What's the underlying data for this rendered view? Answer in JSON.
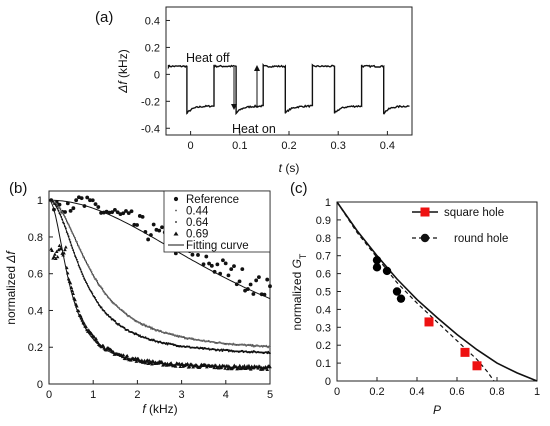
{
  "panels": {
    "a": {
      "label": "(a)"
    },
    "b": {
      "label": "(b)"
    },
    "c": {
      "label": "(c)"
    }
  },
  "chart_data": [
    {
      "id": "a",
      "type": "line",
      "title": "",
      "xlabel_italic": "t",
      "xlabel_rest": " (s)",
      "ylabel_italic": "Δf",
      "ylabel_rest": " (kHz)",
      "xlim": [
        -0.05,
        0.45
      ],
      "ylim": [
        -0.45,
        0.5
      ],
      "xticks": [
        0,
        0.1,
        0.2,
        0.3,
        0.4
      ],
      "xtick_labels": [
        "0",
        "0.1",
        "0.2",
        "0.3",
        "0.4"
      ],
      "yticks": [
        -0.4,
        -0.2,
        0,
        0.2,
        0.4
      ],
      "ytick_labels": [
        "-0.4",
        "-0.2",
        "0",
        "0.2",
        "0.4"
      ],
      "signal": {
        "high_level": 0.06,
        "low_level_start": -0.29,
        "low_level_end": -0.235,
        "edges_down": [
          -0.0075,
          0.0925,
          0.1925,
          0.2925,
          0.3925
        ],
        "edges_up": [
          -0.045,
          0.0475,
          0.1475,
          0.2475,
          0.3475
        ],
        "x_start": -0.045,
        "x_end": 0.445
      },
      "annotations": [
        {
          "text": "Heat off",
          "x": 0.0,
          "y": 0.17
        },
        {
          "text": "Heat on",
          "x": 0.09,
          "y": -0.38
        }
      ]
    },
    {
      "id": "b",
      "type": "scatter",
      "title": "",
      "xlabel_italic": "f",
      "xlabel_rest": " (kHz)",
      "ylabel_plain": "normalized ",
      "ylabel_italic": "Δf",
      "xlim": [
        0,
        5
      ],
      "ylim": [
        0,
        1.05
      ],
      "xticks": [
        0,
        1,
        2,
        3,
        4,
        5
      ],
      "xtick_labels": [
        "0",
        "1",
        "2",
        "3",
        "4",
        "5"
      ],
      "yticks": [
        0,
        0.2,
        0.4,
        0.6,
        0.8,
        1
      ],
      "ytick_labels": [
        "0",
        "0.2",
        "0.4",
        "0.6",
        "0.8",
        "1"
      ],
      "series": [
        {
          "name": "Reference",
          "marker": "dot",
          "a": 0.0,
          "k": 0.11,
          "noise": 0.06
        },
        {
          "name": "0.44",
          "marker": "small-dot",
          "a": 0.17,
          "k": 0.55,
          "noise": 0.005
        },
        {
          "name": "0.64",
          "marker": "small-dot",
          "a": 0.15,
          "k": 0.7,
          "noise": 0.005
        },
        {
          "name": "0.69",
          "marker": "triangle",
          "a": 0.08,
          "k": 1.15,
          "noise": 0.01
        }
      ],
      "fits": [
        {
          "a": 0.0,
          "k": 0.12
        },
        {
          "a": 0.17,
          "k": 0.55
        },
        {
          "a": 0.15,
          "k": 0.7
        },
        {
          "a": 0.08,
          "k": 1.2
        }
      ],
      "fit_legend": "Fitting curve"
    },
    {
      "id": "c",
      "type": "scatter",
      "title": "",
      "xlabel_italic": "P",
      "ylabel_plain": "normalized ",
      "ylabel_italic": "G",
      "ylabel_sub": "T",
      "xlim": [
        0,
        1
      ],
      "ylim": [
        0,
        1
      ],
      "xticks": [
        0,
        0.2,
        0.4,
        0.6,
        0.8,
        1
      ],
      "xtick_labels": [
        "0",
        "0.2",
        "0.4",
        "0.6",
        "0.8",
        "1"
      ],
      "yticks": [
        0,
        0.1,
        0.2,
        0.3,
        0.4,
        0.5,
        0.6,
        0.7,
        0.8,
        0.9,
        1
      ],
      "ytick_labels": [
        "0",
        "0.1",
        "0.2",
        "0.3",
        "0.4",
        "0.5",
        "0.6",
        "0.7",
        "0.8",
        "0.9",
        "1"
      ],
      "series": [
        {
          "name": "square hole",
          "color": "#ee1111",
          "marker": "square",
          "x": [
            0.46,
            0.64,
            0.7
          ],
          "y": [
            0.33,
            0.16,
            0.085
          ],
          "curve_x": [
            0,
            0.1,
            0.2,
            0.3,
            0.4,
            0.5,
            0.6,
            0.7,
            0.8,
            0.9,
            1.0
          ],
          "curve_y": [
            1.0,
            0.84,
            0.7,
            0.57,
            0.455,
            0.355,
            0.26,
            0.175,
            0.1,
            0.045,
            0.0
          ]
        },
        {
          "name": "round hole",
          "color": "#000000",
          "marker": "circle",
          "x": [
            0.2,
            0.2,
            0.25,
            0.3,
            0.32
          ],
          "y": [
            0.675,
            0.635,
            0.615,
            0.5,
            0.46
          ],
          "curve_x": [
            0,
            0.1,
            0.2,
            0.3,
            0.4,
            0.5,
            0.6,
            0.7,
            0.75,
            0.785
          ],
          "curve_y": [
            1.0,
            0.83,
            0.69,
            0.55,
            0.435,
            0.33,
            0.225,
            0.12,
            0.055,
            0.0
          ]
        }
      ]
    }
  ]
}
